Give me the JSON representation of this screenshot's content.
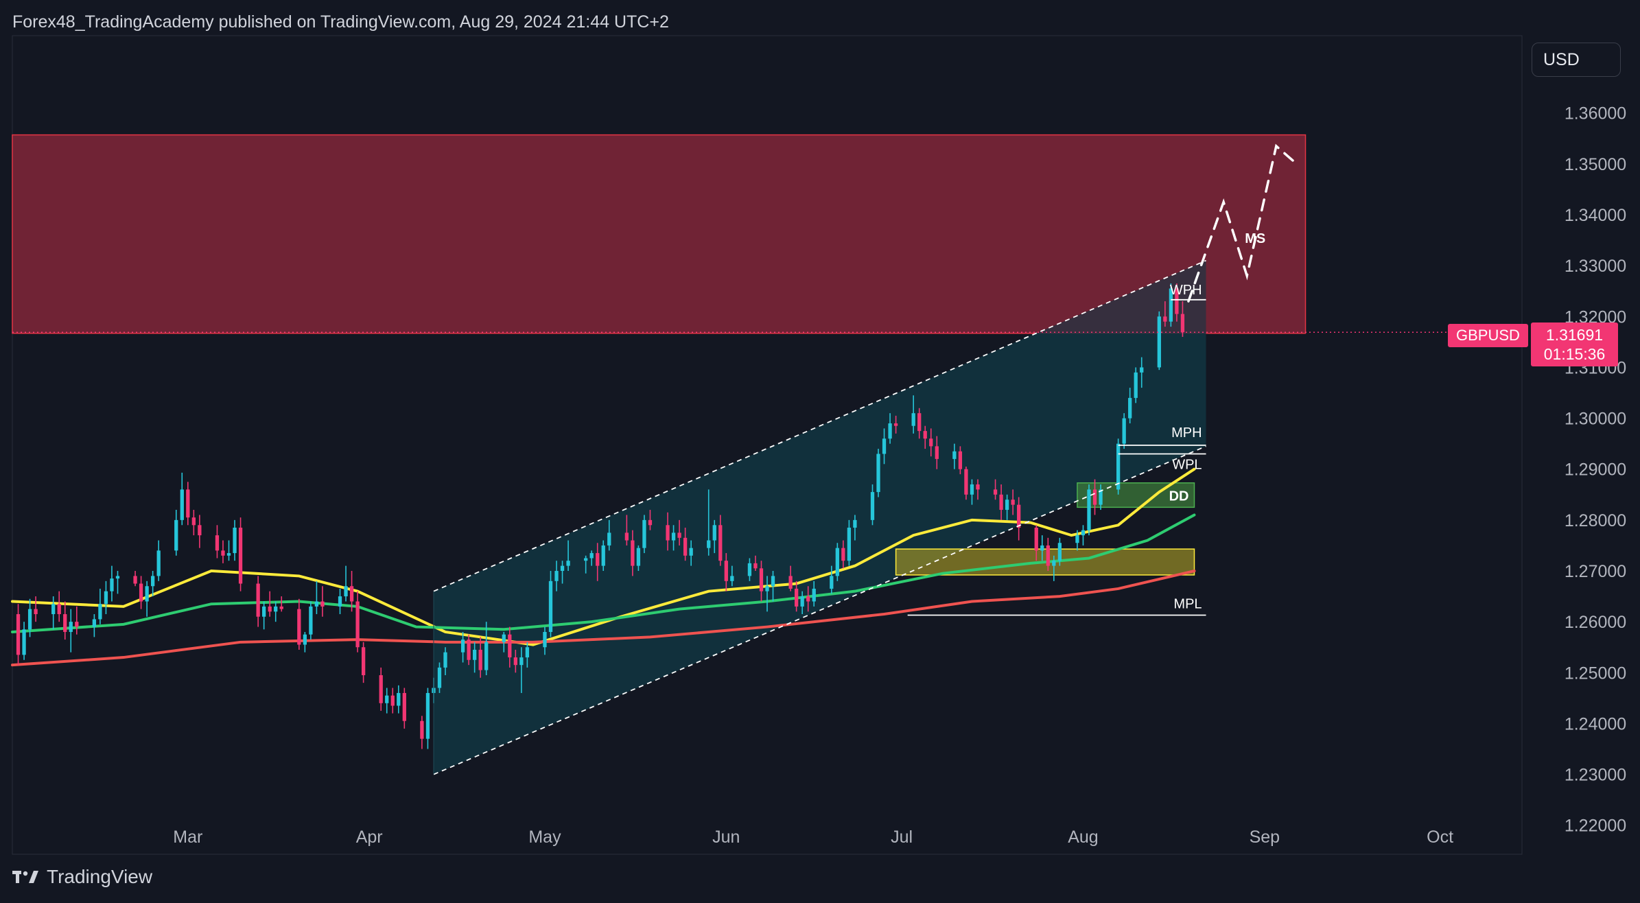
{
  "header": {
    "text": "Forex48_TradingAcademy published on TradingView.com, Aug 29, 2024 21:44 UTC+2"
  },
  "footer": {
    "brand": "TradingView"
  },
  "currency": {
    "label": "USD"
  },
  "symbol": {
    "name": "GBPUSD",
    "price": "1.31691",
    "countdown": "01:15:36"
  },
  "colors": {
    "background": "#131722",
    "up": "#26c6da",
    "down": "#f23673",
    "ema_fast": "#ffeb3b",
    "ema_mid": "#2ecc71",
    "ema_slow": "#ef5350",
    "supply_zone": "#6b2233",
    "channel": "#12333f"
  },
  "chart_data": {
    "type": "candlestick",
    "instrument": "GBPUSD",
    "timeframe": "daily",
    "y_ticks": [
      1.36,
      1.35,
      1.34,
      1.33,
      1.32,
      1.31,
      1.3,
      1.29,
      1.28,
      1.27,
      1.26,
      1.25,
      1.24,
      1.23,
      1.22
    ],
    "y_tick_labels": [
      "1.36000",
      "1.35000",
      "1.34000",
      "1.33000",
      "1.32000",
      "1.31000",
      "1.30000",
      "1.29000",
      "1.28000",
      "1.27000",
      "1.26000",
      "1.25000",
      "1.24000",
      "1.23000",
      "1.22000"
    ],
    "x_ticks": [
      {
        "label": "Mar",
        "day": 31
      },
      {
        "label": "Apr",
        "day": 62
      },
      {
        "label": "May",
        "day": 92
      },
      {
        "label": "Jun",
        "day": 123
      },
      {
        "label": "Jul",
        "day": 153
      },
      {
        "label": "Aug",
        "day": 184
      },
      {
        "label": "Sep",
        "day": 215
      },
      {
        "label": "Oct",
        "day": 245
      }
    ],
    "x_range_days": [
      1,
      259
    ],
    "y_range": [
      1.2143,
      1.3752
    ],
    "last_price": 1.31691,
    "candles": [
      [
        2,
        1.2615,
        1.2635,
        1.2515,
        1.2535
      ],
      [
        3,
        1.2535,
        1.26,
        1.2525,
        1.2585
      ],
      [
        4,
        1.2585,
        1.2645,
        1.257,
        1.2625
      ],
      [
        5,
        1.2625,
        1.265,
        1.26,
        1.2615
      ],
      [
        8,
        1.2615,
        1.265,
        1.2585,
        1.2635
      ],
      [
        9,
        1.2635,
        1.266,
        1.26,
        1.2615
      ],
      [
        10,
        1.2615,
        1.264,
        1.2565,
        1.258
      ],
      [
        11,
        1.258,
        1.2625,
        1.254,
        1.26
      ],
      [
        12,
        1.26,
        1.263,
        1.2575,
        1.259
      ],
      [
        15,
        1.259,
        1.2615,
        1.257,
        1.2605
      ],
      [
        16,
        1.2605,
        1.2665,
        1.2595,
        1.2635
      ],
      [
        17,
        1.2635,
        1.268,
        1.2615,
        1.266
      ],
      [
        18,
        1.266,
        1.271,
        1.264,
        1.2685
      ],
      [
        19,
        1.2685,
        1.27,
        1.2655,
        1.269
      ],
      [
        22,
        1.269,
        1.27,
        1.267,
        1.2675
      ],
      [
        23,
        1.2675,
        1.269,
        1.2625,
        1.264
      ],
      [
        24,
        1.264,
        1.268,
        1.261,
        1.267
      ],
      [
        25,
        1.267,
        1.27,
        1.265,
        1.269
      ],
      [
        26,
        1.269,
        1.276,
        1.268,
        1.274
      ],
      [
        29,
        1.274,
        1.282,
        1.273,
        1.28
      ],
      [
        30,
        1.28,
        1.2893,
        1.279,
        1.286
      ],
      [
        31,
        1.286,
        1.2875,
        1.279,
        1.2805
      ],
      [
        32,
        1.2805,
        1.282,
        1.277,
        1.279
      ],
      [
        33,
        1.279,
        1.281,
        1.2745,
        1.277
      ],
      [
        36,
        1.277,
        1.279,
        1.2725,
        1.274
      ],
      [
        37,
        1.274,
        1.276,
        1.2715,
        1.273
      ],
      [
        38,
        1.273,
        1.276,
        1.272,
        1.2735
      ],
      [
        39,
        1.2735,
        1.28,
        1.272,
        1.2785
      ],
      [
        40,
        1.2785,
        1.2805,
        1.266,
        1.2675
      ],
      [
        43,
        1.2675,
        1.269,
        1.259,
        1.261
      ],
      [
        44,
        1.261,
        1.264,
        1.2585,
        1.263
      ],
      [
        45,
        1.263,
        1.266,
        1.261,
        1.262
      ],
      [
        46,
        1.262,
        1.264,
        1.26,
        1.263
      ],
      [
        47,
        1.263,
        1.265,
        1.262,
        1.2625
      ],
      [
        50,
        1.2625,
        1.2645,
        1.2545,
        1.2555
      ],
      [
        51,
        1.2555,
        1.258,
        1.254,
        1.2575
      ],
      [
        52,
        1.2575,
        1.264,
        1.2565,
        1.263
      ],
      [
        53,
        1.263,
        1.268,
        1.2615,
        1.264
      ],
      [
        54,
        1.264,
        1.267,
        1.261,
        1.263
      ],
      [
        57,
        1.263,
        1.2665,
        1.2615,
        1.265
      ],
      [
        58,
        1.265,
        1.271,
        1.264,
        1.267
      ],
      [
        59,
        1.267,
        1.27,
        1.262,
        1.264
      ],
      [
        60,
        1.264,
        1.266,
        1.254,
        1.255
      ],
      [
        61,
        1.255,
        1.256,
        1.248,
        1.2495
      ],
      [
        64,
        1.2495,
        1.251,
        1.2425,
        1.244
      ],
      [
        65,
        1.244,
        1.247,
        1.242,
        1.2455
      ],
      [
        66,
        1.2455,
        1.247,
        1.242,
        1.2435
      ],
      [
        67,
        1.2435,
        1.2475,
        1.242,
        1.246
      ],
      [
        68,
        1.246,
        1.247,
        1.239,
        1.2405
      ],
      [
        71,
        1.2405,
        1.2415,
        1.235,
        1.237
      ],
      [
        72,
        1.237,
        1.247,
        1.235,
        1.246
      ],
      [
        73,
        1.246,
        1.249,
        1.244,
        1.247
      ],
      [
        74,
        1.247,
        1.252,
        1.246,
        1.251
      ],
      [
        75,
        1.251,
        1.255,
        1.2495,
        1.254
      ],
      [
        78,
        1.254,
        1.258,
        1.252,
        1.2565
      ],
      [
        79,
        1.2565,
        1.2575,
        1.2515,
        1.2525
      ],
      [
        80,
        1.2525,
        1.256,
        1.25,
        1.2545
      ],
      [
        81,
        1.2545,
        1.257,
        1.249,
        1.2505
      ],
      [
        82,
        1.2505,
        1.26,
        1.2495,
        1.256
      ],
      [
        85,
        1.256,
        1.258,
        1.254,
        1.2575
      ],
      [
        86,
        1.2575,
        1.259,
        1.251,
        1.253
      ],
      [
        87,
        1.253,
        1.2545,
        1.25,
        1.2515
      ],
      [
        88,
        1.2515,
        1.255,
        1.246,
        1.253
      ],
      [
        89,
        1.253,
        1.256,
        1.251,
        1.255
      ],
      [
        92,
        1.255,
        1.259,
        1.2535,
        1.258
      ],
      [
        93,
        1.258,
        1.27,
        1.257,
        1.268
      ],
      [
        94,
        1.268,
        1.272,
        1.266,
        1.27
      ],
      [
        95,
        1.27,
        1.272,
        1.2675,
        1.271
      ],
      [
        96,
        1.271,
        1.276,
        1.27,
        1.272
      ],
      [
        99,
        1.272,
        1.273,
        1.2695,
        1.2725
      ],
      [
        100,
        1.2725,
        1.274,
        1.271,
        1.2735
      ],
      [
        101,
        1.2735,
        1.2755,
        1.268,
        1.271
      ],
      [
        102,
        1.271,
        1.276,
        1.27,
        1.275
      ],
      [
        103,
        1.275,
        1.28,
        1.274,
        1.2775
      ],
      [
        106,
        1.2775,
        1.281,
        1.275,
        1.276
      ],
      [
        107,
        1.276,
        1.278,
        1.269,
        1.271
      ],
      [
        108,
        1.271,
        1.275,
        1.27,
        1.2745
      ],
      [
        109,
        1.2745,
        1.281,
        1.2735,
        1.28
      ],
      [
        110,
        1.28,
        1.282,
        1.278,
        1.279
      ],
      [
        113,
        1.279,
        1.2815,
        1.274,
        1.276
      ],
      [
        114,
        1.276,
        1.279,
        1.274,
        1.2775
      ],
      [
        115,
        1.2775,
        1.28,
        1.275,
        1.2765
      ],
      [
        116,
        1.2765,
        1.2785,
        1.272,
        1.273
      ],
      [
        117,
        1.273,
        1.276,
        1.271,
        1.2745
      ],
      [
        120,
        1.2745,
        1.286,
        1.273,
        1.276
      ],
      [
        121,
        1.276,
        1.28,
        1.2735,
        1.279
      ],
      [
        122,
        1.279,
        1.281,
        1.271,
        1.272
      ],
      [
        123,
        1.272,
        1.2735,
        1.266,
        1.268
      ],
      [
        124,
        1.268,
        1.271,
        1.267,
        1.269
      ],
      [
        127,
        1.269,
        1.2725,
        1.268,
        1.2715
      ],
      [
        128,
        1.2715,
        1.273,
        1.27,
        1.2705
      ],
      [
        129,
        1.2705,
        1.272,
        1.264,
        1.266
      ],
      [
        130,
        1.266,
        1.269,
        1.262,
        1.267
      ],
      [
        131,
        1.267,
        1.27,
        1.264,
        1.269
      ],
      [
        134,
        1.269,
        1.271,
        1.266,
        1.2665
      ],
      [
        135,
        1.2665,
        1.268,
        1.262,
        1.263
      ],
      [
        136,
        1.263,
        1.266,
        1.2615,
        1.265
      ],
      [
        137,
        1.265,
        1.267,
        1.262,
        1.264
      ],
      [
        138,
        1.264,
        1.268,
        1.263,
        1.2665
      ],
      [
        141,
        1.2665,
        1.271,
        1.2655,
        1.269
      ],
      [
        142,
        1.269,
        1.2755,
        1.268,
        1.2745
      ],
      [
        143,
        1.2745,
        1.276,
        1.2705,
        1.272
      ],
      [
        144,
        1.272,
        1.28,
        1.271,
        1.2785
      ],
      [
        145,
        1.2785,
        1.281,
        1.276,
        1.28
      ],
      [
        148,
        1.28,
        1.287,
        1.279,
        1.2855
      ],
      [
        149,
        1.2855,
        1.294,
        1.2845,
        1.293
      ],
      [
        150,
        1.293,
        1.298,
        1.291,
        1.296
      ],
      [
        151,
        1.296,
        1.301,
        1.295,
        1.299
      ],
      [
        152,
        1.299,
        1.3005,
        1.297,
        1.2985
      ],
      [
        155,
        1.2985,
        1.3045,
        1.297,
        1.301
      ],
      [
        156,
        1.301,
        1.302,
        1.296,
        1.2975
      ],
      [
        157,
        1.2975,
        1.2985,
        1.294,
        1.296
      ],
      [
        158,
        1.296,
        1.298,
        1.2925,
        1.2945
      ],
      [
        159,
        1.2945,
        1.2965,
        1.29,
        1.292
      ],
      [
        162,
        1.292,
        1.295,
        1.29,
        1.2935
      ],
      [
        163,
        1.2935,
        1.2945,
        1.289,
        1.29
      ],
      [
        164,
        1.29,
        1.2905,
        1.284,
        1.285
      ],
      [
        165,
        1.285,
        1.288,
        1.283,
        1.287
      ],
      [
        166,
        1.287,
        1.288,
        1.284,
        1.286
      ],
      [
        169,
        1.286,
        1.288,
        1.284,
        1.285
      ],
      [
        170,
        1.285,
        1.287,
        1.28,
        1.282
      ],
      [
        171,
        1.282,
        1.285,
        1.28,
        1.284
      ],
      [
        172,
        1.284,
        1.286,
        1.281,
        1.283
      ],
      [
        173,
        1.283,
        1.2845,
        1.276,
        1.2785
      ],
      [
        176,
        1.2785,
        1.279,
        1.272,
        1.274
      ],
      [
        177,
        1.274,
        1.277,
        1.272,
        1.275
      ],
      [
        178,
        1.275,
        1.2765,
        1.27,
        1.271
      ],
      [
        179,
        1.271,
        1.273,
        1.268,
        1.272
      ],
      [
        180,
        1.272,
        1.2765,
        1.271,
        1.2755
      ],
      [
        183,
        1.2755,
        1.278,
        1.274,
        1.277
      ],
      [
        184,
        1.277,
        1.279,
        1.275,
        1.278
      ],
      [
        185,
        1.278,
        1.287,
        1.277,
        1.286
      ],
      [
        186,
        1.286,
        1.288,
        1.281,
        1.283
      ],
      [
        187,
        1.283,
        1.287,
        1.282,
        1.286
      ],
      [
        190,
        1.286,
        1.296,
        1.285,
        1.295
      ],
      [
        191,
        1.295,
        1.301,
        1.294,
        1.3
      ],
      [
        192,
        1.3,
        1.306,
        1.299,
        1.304
      ],
      [
        193,
        1.304,
        1.31,
        1.303,
        1.309
      ],
      [
        194,
        1.309,
        1.312,
        1.306,
        1.31
      ],
      [
        197,
        1.31,
        1.321,
        1.3095,
        1.32
      ],
      [
        198,
        1.32,
        1.323,
        1.318,
        1.319
      ],
      [
        199,
        1.319,
        1.3265,
        1.318,
        1.3255
      ],
      [
        200,
        1.3255,
        1.3265,
        1.319,
        1.3205
      ],
      [
        201,
        1.3205,
        1.323,
        1.316,
        1.3169
      ]
    ],
    "moving_averages": [
      {
        "color": "#ffeb3b",
        "points": [
          [
            1,
            1.264
          ],
          [
            20,
            1.263
          ],
          [
            35,
            1.27
          ],
          [
            50,
            1.269
          ],
          [
            60,
            1.266
          ],
          [
            75,
            1.258
          ],
          [
            90,
            1.2555
          ],
          [
            105,
            1.261
          ],
          [
            120,
            1.266
          ],
          [
            135,
            1.2675
          ],
          [
            145,
            1.271
          ],
          [
            155,
            1.277
          ],
          [
            165,
            1.28
          ],
          [
            175,
            1.2795
          ],
          [
            182,
            1.277
          ],
          [
            190,
            1.279
          ],
          [
            197,
            1.2855
          ],
          [
            203,
            1.29
          ]
        ]
      },
      {
        "color": "#2ecc71",
        "points": [
          [
            1,
            1.258
          ],
          [
            20,
            1.2595
          ],
          [
            35,
            1.2635
          ],
          [
            50,
            1.264
          ],
          [
            60,
            1.263
          ],
          [
            70,
            1.259
          ],
          [
            85,
            1.2585
          ],
          [
            100,
            1.26
          ],
          [
            115,
            1.2625
          ],
          [
            130,
            1.264
          ],
          [
            145,
            1.266
          ],
          [
            160,
            1.2695
          ],
          [
            175,
            1.2715
          ],
          [
            185,
            1.2725
          ],
          [
            195,
            1.276
          ],
          [
            203,
            1.281
          ]
        ]
      },
      {
        "color": "#ef5350",
        "points": [
          [
            1,
            1.2515
          ],
          [
            20,
            1.253
          ],
          [
            40,
            1.256
          ],
          [
            60,
            1.2565
          ],
          [
            75,
            1.256
          ],
          [
            90,
            1.256
          ],
          [
            110,
            1.257
          ],
          [
            130,
            1.259
          ],
          [
            150,
            1.2615
          ],
          [
            165,
            1.264
          ],
          [
            180,
            1.265
          ],
          [
            190,
            1.2665
          ],
          [
            203,
            1.27
          ]
        ]
      }
    ],
    "zones": [
      {
        "name": "supply_zone",
        "y": [
          1.3167,
          1.3557
        ]
      },
      {
        "name": "demand_zone",
        "x": [
          152,
          203
        ],
        "y": [
          1.2692,
          1.2743
        ]
      },
      {
        "name": "DD",
        "x": [
          183,
          203
        ],
        "y": [
          1.2825,
          1.2873
        ]
      }
    ],
    "channel": {
      "lower": [
        [
          73,
          1.23
        ],
        [
          205,
          1.2945
        ]
      ],
      "upper": [
        [
          73,
          1.266
        ],
        [
          205,
          1.331
        ]
      ]
    },
    "levels": [
      {
        "label": "WPH",
        "price": 1.3233,
        "x": [
          199,
          205
        ]
      },
      {
        "label": "MPH",
        "price": 1.2947,
        "x": [
          190,
          205
        ]
      },
      {
        "label": "WPL",
        "price": 1.293,
        "x": [
          190,
          205
        ]
      },
      {
        "label": "MPL",
        "price": 1.2613,
        "x": [
          154,
          205
        ]
      },
      {
        "label": "MS",
        "price": 1.335
      }
    ],
    "projection": [
      [
        202,
        1.323
      ],
      [
        208,
        1.3425
      ],
      [
        212,
        1.328
      ],
      [
        217,
        1.3535
      ],
      [
        220,
        1.3505
      ]
    ],
    "annotations": [
      "WPH",
      "MPH",
      "WPL",
      "DD",
      "MPL",
      "MS"
    ]
  }
}
